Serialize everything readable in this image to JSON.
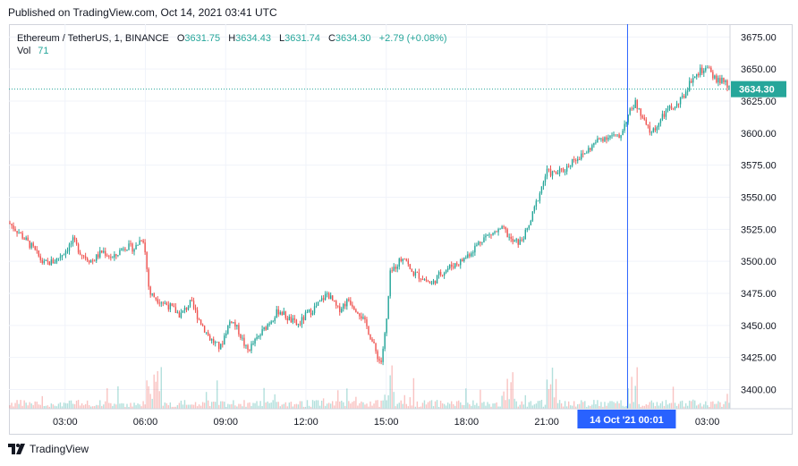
{
  "published": "Published on TradingView.com, Oct 14, 2021 03:41 UTC",
  "legend": {
    "symbol": "Ethereum / TetherUS, 1, BINANCE",
    "o_label": "O",
    "o_value": "3631.75",
    "h_label": "H",
    "h_value": "3634.43",
    "l_label": "L",
    "l_value": "3631.74",
    "c_label": "C",
    "c_value": "3634.30",
    "change": "+2.79 (+0.08%)",
    "vol_label": "Vol",
    "vol_value": "71"
  },
  "footer": {
    "brand": "TradingView"
  },
  "colors": {
    "up": "#26a69a",
    "down": "#ef5350",
    "grid": "#f0f3fa",
    "crosshair": "#2962ff",
    "price_line": "#26a69a",
    "text": "#131722"
  },
  "chart_data": {
    "type": "candlestick",
    "ylim": [
      3385,
      3685
    ],
    "y_ticks": [
      "3675.00",
      "3650.00",
      "3625.00",
      "3600.00",
      "3575.00",
      "3550.00",
      "3525.00",
      "3500.00",
      "3475.00",
      "3450.00",
      "3425.00",
      "3400.00"
    ],
    "y_tick_values": [
      3675,
      3650,
      3625,
      3600,
      3575,
      3550,
      3525,
      3500,
      3475,
      3450,
      3425,
      3400
    ],
    "x_ticks": [
      "03:00",
      "06:00",
      "09:00",
      "12:00",
      "15:00",
      "18:00",
      "21:00",
      "03:00"
    ],
    "x_tick_hours": [
      3,
      6,
      9,
      12,
      15,
      18,
      21,
      27
    ],
    "x_range_hours": [
      0.9,
      27.85
    ],
    "crosshair": {
      "label": "14 Oct '21   00:01",
      "hour": 24.02
    },
    "last_price": {
      "label": "3634.30",
      "value": 3634.3
    },
    "price_path": [
      [
        0.9,
        3530
      ],
      [
        1.3,
        3522
      ],
      [
        1.8,
        3510
      ],
      [
        2.2,
        3498
      ],
      [
        2.6,
        3500
      ],
      [
        3.0,
        3508
      ],
      [
        3.3,
        3516
      ],
      [
        3.6,
        3506
      ],
      [
        4.0,
        3500
      ],
      [
        4.4,
        3508
      ],
      [
        4.8,
        3502
      ],
      [
        5.2,
        3512
      ],
      [
        5.6,
        3510
      ],
      [
        5.9,
        3520
      ],
      [
        6.0,
        3505
      ],
      [
        6.15,
        3475
      ],
      [
        6.5,
        3470
      ],
      [
        6.9,
        3465
      ],
      [
        7.3,
        3458
      ],
      [
        7.7,
        3468
      ],
      [
        8.0,
        3455
      ],
      [
        8.4,
        3440
      ],
      [
        8.8,
        3432
      ],
      [
        9.0,
        3445
      ],
      [
        9.2,
        3455
      ],
      [
        9.5,
        3445
      ],
      [
        9.8,
        3430
      ],
      [
        10.2,
        3440
      ],
      [
        10.6,
        3452
      ],
      [
        11.0,
        3462
      ],
      [
        11.3,
        3456
      ],
      [
        11.7,
        3450
      ],
      [
        12.0,
        3458
      ],
      [
        12.4,
        3465
      ],
      [
        12.8,
        3475
      ],
      [
        13.2,
        3462
      ],
      [
        13.6,
        3470
      ],
      [
        14.0,
        3460
      ],
      [
        14.3,
        3448
      ],
      [
        14.6,
        3430
      ],
      [
        14.8,
        3420
      ],
      [
        15.0,
        3450
      ],
      [
        15.15,
        3490
      ],
      [
        15.4,
        3498
      ],
      [
        15.7,
        3505
      ],
      [
        15.9,
        3492
      ],
      [
        16.3,
        3488
      ],
      [
        16.7,
        3482
      ],
      [
        17.0,
        3490
      ],
      [
        17.4,
        3496
      ],
      [
        17.8,
        3500
      ],
      [
        18.2,
        3508
      ],
      [
        18.6,
        3518
      ],
      [
        19.0,
        3522
      ],
      [
        19.4,
        3525
      ],
      [
        19.7,
        3515
      ],
      [
        20.0,
        3515
      ],
      [
        20.3,
        3525
      ],
      [
        20.6,
        3545
      ],
      [
        21.0,
        3570
      ],
      [
        21.3,
        3568
      ],
      [
        21.7,
        3572
      ],
      [
        22.0,
        3580
      ],
      [
        22.3,
        3582
      ],
      [
        22.6,
        3588
      ],
      [
        23.0,
        3596
      ],
      [
        23.4,
        3598
      ],
      [
        23.7,
        3596
      ],
      [
        24.0,
        3612
      ],
      [
        24.3,
        3624
      ],
      [
        24.6,
        3610
      ],
      [
        24.9,
        3600
      ],
      [
        25.2,
        3608
      ],
      [
        25.5,
        3618
      ],
      [
        25.8,
        3620
      ],
      [
        26.1,
        3628
      ],
      [
        26.4,
        3642
      ],
      [
        26.7,
        3648
      ],
      [
        27.0,
        3650
      ],
      [
        27.3,
        3642
      ],
      [
        27.6,
        3640
      ],
      [
        27.85,
        3634
      ]
    ]
  }
}
